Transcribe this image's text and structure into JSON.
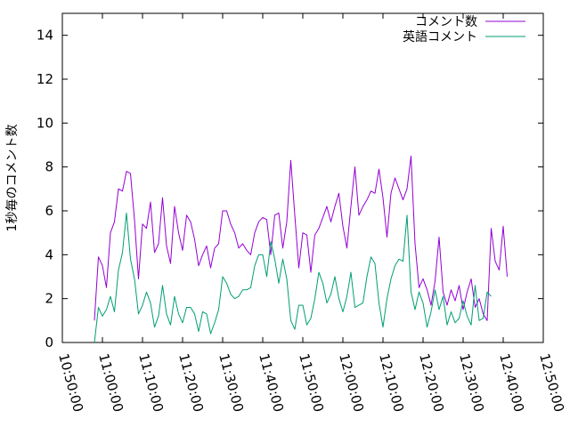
{
  "chart_data": {
    "type": "line",
    "title": "",
    "xlabel": "",
    "ylabel": "1秒毎のコメント数",
    "xlim": [
      "10:50:00",
      "12:50:00"
    ],
    "ylim": [
      0,
      15
    ],
    "grid": false,
    "legend_position": "top-right",
    "x_ticks": [
      "10:50:00",
      "11:00:00",
      "11:10:00",
      "11:20:00",
      "11:30:00",
      "11:40:00",
      "11:50:00",
      "12:00:00",
      "12:10:00",
      "12:20:00",
      "12:30:00",
      "12:40:00",
      "12:50:00"
    ],
    "y_ticks": [
      "0",
      "2",
      "4",
      "6",
      "8",
      "10",
      "12",
      "14"
    ],
    "series": [
      {
        "name": "コメント数",
        "color": "#9400d3",
        "points": [
          [
            "10:58:00",
            1.0
          ],
          [
            "10:59:00",
            3.9
          ],
          [
            "11:00:00",
            3.5
          ],
          [
            "11:01:00",
            2.5
          ],
          [
            "11:02:00",
            5.0
          ],
          [
            "11:03:00",
            5.5
          ],
          [
            "11:04:00",
            7.0
          ],
          [
            "11:05:00",
            6.9
          ],
          [
            "11:06:00",
            7.8
          ],
          [
            "11:07:00",
            7.7
          ],
          [
            "11:08:00",
            5.6
          ],
          [
            "11:09:00",
            2.9
          ],
          [
            "11:10:00",
            5.4
          ],
          [
            "11:11:00",
            5.2
          ],
          [
            "11:12:00",
            6.4
          ],
          [
            "11:13:00",
            4.1
          ],
          [
            "11:14:00",
            4.5
          ],
          [
            "11:15:00",
            6.6
          ],
          [
            "11:16:00",
            4.4
          ],
          [
            "11:17:00",
            3.6
          ],
          [
            "11:18:00",
            6.2
          ],
          [
            "11:19:00",
            5.0
          ],
          [
            "11:20:00",
            4.2
          ],
          [
            "11:21:00",
            5.8
          ],
          [
            "11:22:00",
            5.5
          ],
          [
            "11:23:00",
            4.7
          ],
          [
            "11:24:00",
            3.5
          ],
          [
            "11:25:00",
            4.0
          ],
          [
            "11:26:00",
            4.4
          ],
          [
            "11:27:00",
            3.4
          ],
          [
            "11:28:00",
            4.3
          ],
          [
            "11:29:00",
            4.5
          ],
          [
            "11:30:00",
            6.0
          ],
          [
            "11:31:00",
            6.0
          ],
          [
            "11:32:00",
            5.4
          ],
          [
            "11:33:00",
            5.0
          ],
          [
            "11:34:00",
            4.3
          ],
          [
            "11:35:00",
            4.5
          ],
          [
            "11:36:00",
            4.2
          ],
          [
            "11:37:00",
            4.0
          ],
          [
            "11:38:00",
            5.0
          ],
          [
            "11:39:00",
            5.5
          ],
          [
            "11:40:00",
            5.7
          ],
          [
            "11:41:00",
            5.6
          ],
          [
            "11:42:00",
            4.0
          ],
          [
            "11:43:00",
            5.8
          ],
          [
            "11:44:00",
            5.9
          ],
          [
            "11:45:00",
            4.3
          ],
          [
            "11:46:00",
            5.5
          ],
          [
            "11:47:00",
            8.3
          ],
          [
            "11:48:00",
            5.8
          ],
          [
            "11:49:00",
            3.4
          ],
          [
            "11:50:00",
            5.0
          ],
          [
            "11:51:00",
            4.9
          ],
          [
            "11:52:00",
            3.2
          ],
          [
            "11:53:00",
            4.9
          ],
          [
            "11:54:00",
            5.2
          ],
          [
            "11:55:00",
            5.7
          ],
          [
            "11:56:00",
            6.2
          ],
          [
            "11:57:00",
            5.5
          ],
          [
            "11:58:00",
            6.2
          ],
          [
            "11:59:00",
            6.8
          ],
          [
            "12:00:00",
            5.3
          ],
          [
            "12:01:00",
            4.3
          ],
          [
            "12:02:00",
            6.2
          ],
          [
            "12:03:00",
            8.0
          ],
          [
            "12:04:00",
            5.8
          ],
          [
            "12:05:00",
            6.2
          ],
          [
            "12:06:00",
            6.5
          ],
          [
            "12:07:00",
            6.9
          ],
          [
            "12:08:00",
            6.8
          ],
          [
            "12:09:00",
            7.9
          ],
          [
            "12:10:00",
            6.6
          ],
          [
            "12:11:00",
            4.8
          ],
          [
            "12:12:00",
            6.8
          ],
          [
            "12:13:00",
            7.5
          ],
          [
            "12:14:00",
            7.0
          ],
          [
            "12:15:00",
            6.5
          ],
          [
            "12:16:00",
            7.0
          ],
          [
            "12:17:00",
            8.5
          ],
          [
            "12:18:00",
            4.5
          ],
          [
            "12:19:00",
            2.5
          ],
          [
            "12:20:00",
            2.9
          ],
          [
            "12:21:00",
            2.4
          ],
          [
            "12:22:00",
            1.7
          ],
          [
            "12:23:00",
            2.8
          ],
          [
            "12:24:00",
            4.8
          ],
          [
            "12:25:00",
            2.3
          ],
          [
            "12:26:00",
            1.7
          ],
          [
            "12:27:00",
            2.4
          ],
          [
            "12:28:00",
            1.9
          ],
          [
            "12:29:00",
            2.6
          ],
          [
            "12:30:00",
            1.5
          ],
          [
            "12:31:00",
            2.3
          ],
          [
            "12:32:00",
            2.9
          ],
          [
            "12:33:00",
            1.6
          ],
          [
            "12:34:00",
            2.0
          ],
          [
            "12:35:00",
            1.3
          ],
          [
            "12:36:00",
            1.0
          ],
          [
            "12:37:00",
            5.2
          ],
          [
            "12:38:00",
            3.7
          ],
          [
            "12:39:00",
            3.3
          ],
          [
            "12:40:00",
            5.3
          ],
          [
            "12:41:00",
            3.0
          ]
        ]
      },
      {
        "name": "英語コメント",
        "color": "#009e73",
        "points": [
          [
            "10:58:00",
            0.0
          ],
          [
            "10:59:00",
            1.6
          ],
          [
            "11:00:00",
            1.2
          ],
          [
            "11:01:00",
            1.5
          ],
          [
            "11:02:00",
            2.1
          ],
          [
            "11:03:00",
            1.4
          ],
          [
            "11:04:00",
            3.3
          ],
          [
            "11:05:00",
            4.1
          ],
          [
            "11:06:00",
            5.9
          ],
          [
            "11:07:00",
            3.8
          ],
          [
            "11:08:00",
            2.9
          ],
          [
            "11:09:00",
            1.3
          ],
          [
            "11:10:00",
            1.7
          ],
          [
            "11:11:00",
            2.3
          ],
          [
            "11:12:00",
            1.8
          ],
          [
            "11:13:00",
            0.7
          ],
          [
            "11:14:00",
            1.2
          ],
          [
            "11:15:00",
            2.6
          ],
          [
            "11:16:00",
            1.3
          ],
          [
            "11:17:00",
            0.8
          ],
          [
            "11:18:00",
            2.1
          ],
          [
            "11:19:00",
            1.3
          ],
          [
            "11:20:00",
            0.9
          ],
          [
            "11:21:00",
            1.6
          ],
          [
            "11:22:00",
            1.6
          ],
          [
            "11:23:00",
            1.3
          ],
          [
            "11:24:00",
            0.5
          ],
          [
            "11:25:00",
            1.4
          ],
          [
            "11:26:00",
            1.3
          ],
          [
            "11:27:00",
            0.4
          ],
          [
            "11:28:00",
            0.9
          ],
          [
            "11:29:00",
            1.5
          ],
          [
            "11:30:00",
            3.0
          ],
          [
            "11:31:00",
            2.7
          ],
          [
            "11:32:00",
            2.2
          ],
          [
            "11:33:00",
            2.0
          ],
          [
            "11:34:00",
            2.1
          ],
          [
            "11:35:00",
            2.4
          ],
          [
            "11:36:00",
            2.4
          ],
          [
            "11:37:00",
            2.5
          ],
          [
            "11:38:00",
            3.5
          ],
          [
            "11:39:00",
            4.0
          ],
          [
            "11:40:00",
            4.0
          ],
          [
            "11:41:00",
            3.0
          ],
          [
            "11:42:00",
            4.6
          ],
          [
            "11:43:00",
            3.8
          ],
          [
            "11:44:00",
            2.7
          ],
          [
            "11:45:00",
            3.8
          ],
          [
            "11:46:00",
            2.9
          ],
          [
            "11:47:00",
            1.0
          ],
          [
            "11:48:00",
            0.6
          ],
          [
            "11:49:00",
            1.7
          ],
          [
            "11:50:00",
            1.7
          ],
          [
            "11:51:00",
            0.8
          ],
          [
            "11:52:00",
            1.1
          ],
          [
            "11:53:00",
            2.0
          ],
          [
            "11:54:00",
            3.2
          ],
          [
            "11:55:00",
            2.7
          ],
          [
            "11:56:00",
            1.8
          ],
          [
            "11:57:00",
            2.2
          ],
          [
            "11:58:00",
            3.0
          ],
          [
            "11:59:00",
            2.0
          ],
          [
            "12:00:00",
            1.4
          ],
          [
            "12:01:00",
            2.1
          ],
          [
            "12:02:00",
            3.2
          ],
          [
            "12:03:00",
            1.6
          ],
          [
            "12:04:00",
            1.7
          ],
          [
            "12:05:00",
            1.8
          ],
          [
            "12:06:00",
            3.0
          ],
          [
            "12:07:00",
            3.9
          ],
          [
            "12:08:00",
            3.6
          ],
          [
            "12:09:00",
            1.8
          ],
          [
            "12:10:00",
            0.7
          ],
          [
            "12:11:00",
            2.0
          ],
          [
            "12:12:00",
            2.9
          ],
          [
            "12:13:00",
            3.5
          ],
          [
            "12:14:00",
            3.8
          ],
          [
            "12:15:00",
            3.7
          ],
          [
            "12:16:00",
            5.8
          ],
          [
            "12:17:00",
            2.3
          ],
          [
            "12:18:00",
            1.5
          ],
          [
            "12:19:00",
            2.3
          ],
          [
            "12:20:00",
            1.8
          ],
          [
            "12:21:00",
            0.7
          ],
          [
            "12:22:00",
            1.4
          ],
          [
            "12:23:00",
            2.4
          ],
          [
            "12:24:00",
            1.5
          ],
          [
            "12:25:00",
            2.1
          ],
          [
            "12:26:00",
            0.8
          ],
          [
            "12:27:00",
            1.4
          ],
          [
            "12:28:00",
            0.9
          ],
          [
            "12:29:00",
            1.1
          ],
          [
            "12:30:00",
            1.9
          ],
          [
            "12:31:00",
            1.2
          ],
          [
            "12:32:00",
            0.8
          ],
          [
            "12:33:00",
            2.6
          ],
          [
            "12:34:00",
            1.0
          ],
          [
            "12:35:00",
            1.1
          ],
          [
            "12:36:00",
            2.3
          ],
          [
            "12:37:00",
            2.1
          ]
        ]
      }
    ]
  }
}
